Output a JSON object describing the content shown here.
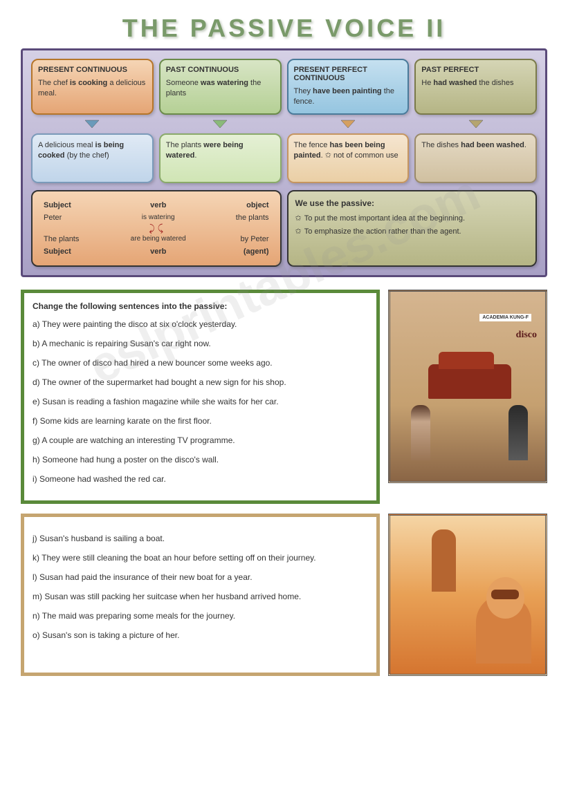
{
  "title": "THE PASSIVE VOICE II",
  "watermark": "eslprintables.com",
  "tenses": [
    {
      "h": "PRESENT CONTINUOUS",
      "active": "The chef <b>is cooking</b> a delicious meal.",
      "passive": "A delicious meal <b>is being cooked</b> (by the chef)",
      "top_cls": "orange",
      "bot_cls": "lblue",
      "arrow": "#6a9aba"
    },
    {
      "h": "PAST CONTINUOUS",
      "active": "Someone <b>was watering</b> the plants",
      "passive": "The plants <b>were being watered</b>.",
      "top_cls": "green",
      "bot_cls": "lgreen",
      "arrow": "#8aba7a"
    },
    {
      "h": "PRESENT PERFECT CONTINUOUS",
      "active": "They <b>have been painting</b> the fence.",
      "passive": "The fence <b>has been being painted</b>. ✩ not of common use",
      "top_cls": "blue",
      "bot_cls": "lorange",
      "arrow": "#d5a060"
    },
    {
      "h": "PAST PERFECT",
      "active": "He <b>had washed</b> the dishes",
      "passive": "The dishes <b>had been washed</b>.",
      "top_cls": "olive",
      "bot_cls": "tan",
      "arrow": "#b5a570"
    }
  ],
  "structure": {
    "r1": {
      "c1": "<b>Subject</b>",
      "c2": "<b>verb</b>",
      "c3": "<b>object</b>"
    },
    "r2": {
      "c1": "Peter",
      "c2": "is watering",
      "c3": "the plants"
    },
    "r3": {
      "c1": "The plants",
      "c2": "are being watered",
      "c3": "by Peter"
    },
    "r4": {
      "c1": "<b>Subject</b>",
      "c2": "<b>verb</b>",
      "c3": "<b>(agent)</b>"
    }
  },
  "usage": {
    "h": "We use the passive:",
    "l1": "To put the most important idea at the beginning.",
    "l2": "To emphasize the action rather than the agent."
  },
  "ex1": {
    "title": "Change the following sentences into the passive:",
    "items": [
      "a) They were painting the disco at six o'clock yesterday.",
      "b) A mechanic is repairing Susan's car right now.",
      "c) The owner of disco had hired a new bouncer some weeks ago.",
      "d) The owner of the supermarket had bought a new sign for his shop.",
      "e) Susan is reading a fashion magazine while she waits for her car.",
      "f) Some kids are learning karate on the first floor.",
      "g) A couple are watching an interesting TV programme.",
      "h) Someone had hung a poster on the disco's wall.",
      "i) Someone had washed the red car."
    ]
  },
  "ex2": {
    "items": [
      "j) Susan's husband is sailing a boat.",
      "k) They were still cleaning the boat an hour before setting off on their journey.",
      "l) Susan had paid the insurance of their new boat for a year.",
      "m) Susan was still packing her suitcase when her husband arrived home.",
      "n) The maid was preparing some meals for the journey.",
      "o) Susan's son is taking a picture of her."
    ]
  },
  "signs": {
    "academia": "ACADEMIA KUNG-F",
    "disco": "disco"
  }
}
